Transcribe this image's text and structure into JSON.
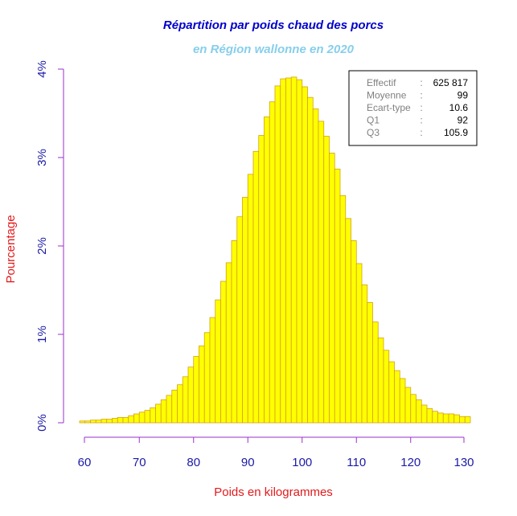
{
  "chart_data": {
    "type": "bar",
    "title": "Répartition par poids chaud des porcs",
    "subtitle": "en Région wallonne en 2020",
    "xlabel": "Poids en kilogrammes",
    "ylabel": "Pourcentage",
    "xlim": [
      58,
      131
    ],
    "ylim": [
      0,
      4
    ],
    "x_ticks": [
      60,
      70,
      80,
      90,
      100,
      110,
      120,
      130
    ],
    "y_ticks": [
      "0%",
      "1%",
      "2%",
      "3%",
      "4%"
    ],
    "bin_width": 1,
    "bins_start": [
      59,
      60,
      61,
      62,
      63,
      64,
      65,
      66,
      67,
      68,
      69,
      70,
      71,
      72,
      73,
      74,
      75,
      76,
      77,
      78,
      79,
      80,
      81,
      82,
      83,
      84,
      85,
      86,
      87,
      88,
      89,
      90,
      91,
      92,
      93,
      94,
      95,
      96,
      97,
      98,
      99,
      100,
      101,
      102,
      103,
      104,
      105,
      106,
      107,
      108,
      109,
      110,
      111,
      112,
      113,
      114,
      115,
      116,
      117,
      118,
      119,
      120,
      121,
      122,
      123,
      124,
      125,
      126,
      127,
      128,
      129,
      130
    ],
    "values": [
      0.02,
      0.02,
      0.03,
      0.03,
      0.04,
      0.04,
      0.05,
      0.06,
      0.06,
      0.08,
      0.1,
      0.12,
      0.14,
      0.17,
      0.21,
      0.26,
      0.31,
      0.37,
      0.43,
      0.52,
      0.63,
      0.75,
      0.87,
      1.02,
      1.19,
      1.39,
      1.6,
      1.81,
      2.06,
      2.33,
      2.55,
      2.81,
      3.07,
      3.25,
      3.46,
      3.63,
      3.81,
      3.89,
      3.9,
      3.91,
      3.88,
      3.8,
      3.68,
      3.55,
      3.41,
      3.24,
      3.05,
      2.87,
      2.57,
      2.31,
      2.06,
      1.8,
      1.56,
      1.36,
      1.14,
      0.96,
      0.82,
      0.69,
      0.59,
      0.5,
      0.4,
      0.32,
      0.26,
      0.2,
      0.16,
      0.13,
      0.11,
      0.1,
      0.1,
      0.09,
      0.07,
      0.07
    ],
    "grid": false,
    "colors": {
      "bar_fill": "#ffff00",
      "bar_stroke": "#d4a017",
      "title": "#0000cc",
      "subtitle": "#87ceeb",
      "axis": "#9932cc",
      "tick_text": "#1a1aa6",
      "axis_label": "#e31a1c"
    },
    "stats_box": {
      "position": "top-right",
      "rows": [
        {
          "name": "Effectif",
          "sep": ":",
          "value": "625 817"
        },
        {
          "name": "Moyenne",
          "sep": ":",
          "value": "99"
        },
        {
          "name": "Ecart-type",
          "sep": ":",
          "value": "10.6"
        },
        {
          "name": "Q1",
          "sep": ":",
          "value": "92"
        },
        {
          "name": "Q3",
          "sep": ":",
          "value": "105.9"
        }
      ]
    }
  }
}
